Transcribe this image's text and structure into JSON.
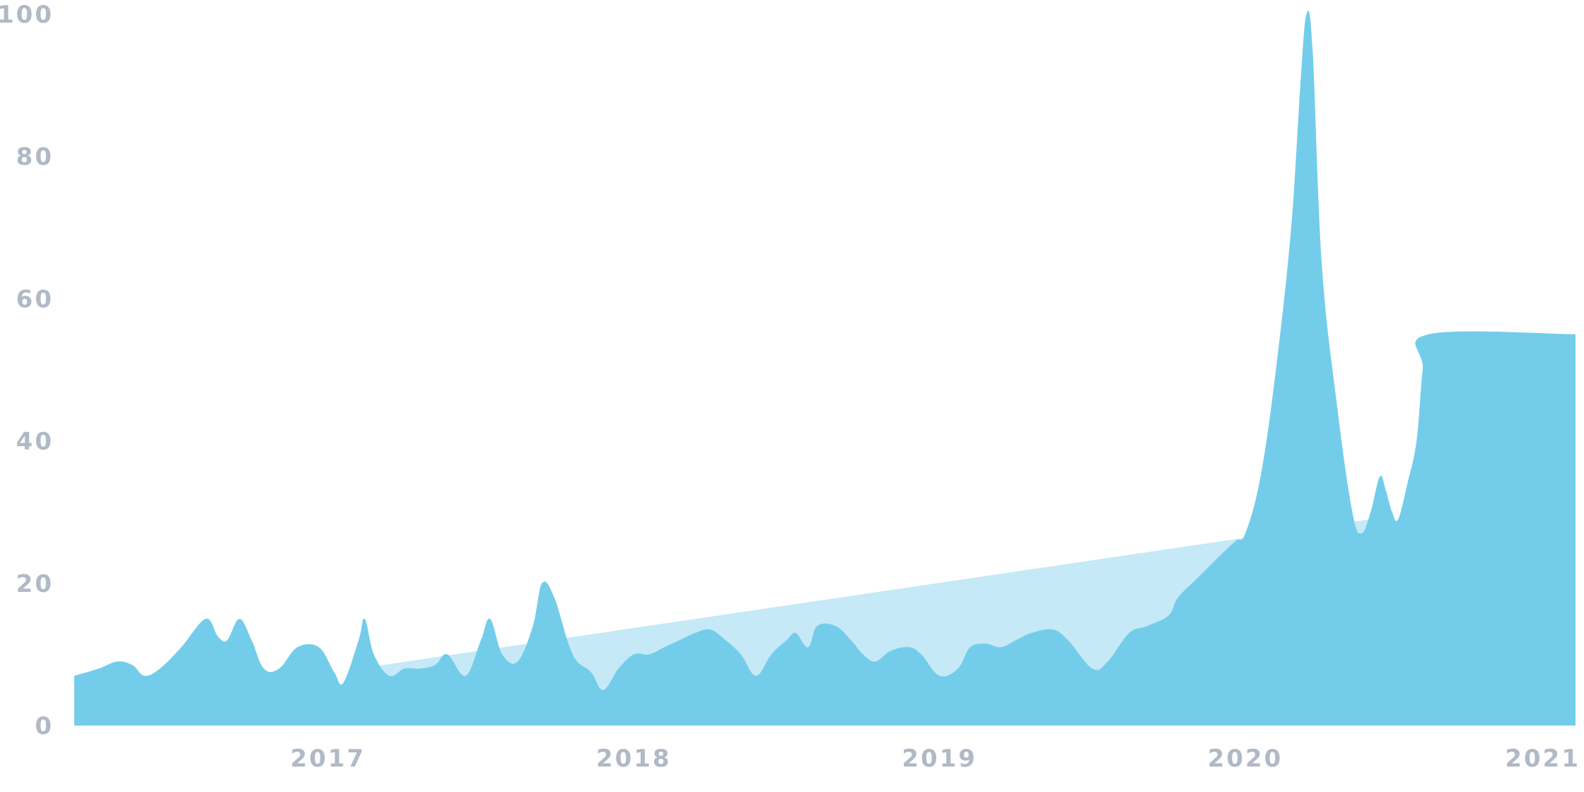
{
  "colors": {
    "area": "#73cdea",
    "trend": "#c5e9f6",
    "tick_text": "#b0b9c6",
    "background": "#ffffff"
  },
  "chart_data": {
    "type": "area",
    "title": "",
    "xlabel": "",
    "ylabel": "",
    "grid": false,
    "legend": "none",
    "ylim": [
      0,
      100
    ],
    "xlim": [
      2016.17,
      2021.08
    ],
    "y_ticks": [
      "0",
      "20",
      "40",
      "60",
      "80",
      "100"
    ],
    "x_ticks": [
      "2017",
      "2018",
      "2019",
      "2020",
      "2021"
    ],
    "series": [
      {
        "values": [
          [
            2016.17,
            7
          ],
          [
            2016.25,
            8
          ],
          [
            2016.31,
            9
          ],
          [
            2016.36,
            8.5
          ],
          [
            2016.4,
            7
          ],
          [
            2016.45,
            8
          ],
          [
            2016.52,
            11
          ],
          [
            2016.6,
            15
          ],
          [
            2016.64,
            12.5
          ],
          [
            2016.67,
            12
          ],
          [
            2016.71,
            15
          ],
          [
            2016.75,
            12
          ],
          [
            2016.79,
            8
          ],
          [
            2016.84,
            8
          ],
          [
            2016.9,
            11
          ],
          [
            2016.97,
            11
          ],
          [
            2017.02,
            7.5
          ],
          [
            2017.05,
            6
          ],
          [
            2017.1,
            12
          ],
          [
            2017.12,
            15
          ],
          [
            2017.15,
            10
          ],
          [
            2017.2,
            7
          ],
          [
            2017.25,
            8
          ],
          [
            2017.3,
            8
          ],
          [
            2017.35,
            8.5
          ],
          [
            2017.39,
            10
          ],
          [
            2017.45,
            7
          ],
          [
            2017.5,
            12
          ],
          [
            2017.53,
            15
          ],
          [
            2017.57,
            10
          ],
          [
            2017.62,
            9
          ],
          [
            2017.67,
            14
          ],
          [
            2017.7,
            20
          ],
          [
            2017.74,
            18
          ],
          [
            2017.8,
            10
          ],
          [
            2017.86,
            7.5
          ],
          [
            2017.9,
            5
          ],
          [
            2017.95,
            8
          ],
          [
            2018.0,
            10
          ],
          [
            2018.05,
            10
          ],
          [
            2018.1,
            11
          ],
          [
            2018.15,
            12
          ],
          [
            2018.2,
            13
          ],
          [
            2018.25,
            13.5
          ],
          [
            2018.3,
            12
          ],
          [
            2018.35,
            10
          ],
          [
            2018.4,
            7
          ],
          [
            2018.45,
            10
          ],
          [
            2018.5,
            12
          ],
          [
            2018.53,
            13
          ],
          [
            2018.57,
            11
          ],
          [
            2018.6,
            14
          ],
          [
            2018.66,
            14
          ],
          [
            2018.71,
            12
          ],
          [
            2018.75,
            10
          ],
          [
            2018.79,
            9
          ],
          [
            2018.84,
            10.5
          ],
          [
            2018.9,
            11
          ],
          [
            2018.94,
            10
          ],
          [
            2019.0,
            7
          ],
          [
            2019.06,
            8
          ],
          [
            2019.1,
            11
          ],
          [
            2019.15,
            11.5
          ],
          [
            2019.2,
            11
          ],
          [
            2019.25,
            12
          ],
          [
            2019.3,
            13
          ],
          [
            2019.37,
            13.5
          ],
          [
            2019.42,
            12
          ],
          [
            2019.5,
            8
          ],
          [
            2019.55,
            9
          ],
          [
            2019.62,
            13
          ],
          [
            2019.68,
            14
          ],
          [
            2019.75,
            15.5
          ],
          [
            2019.78,
            18
          ],
          [
            2019.85,
            21
          ],
          [
            2019.92,
            24
          ],
          [
            2019.97,
            26
          ],
          [
            2020.0,
            27
          ],
          [
            2020.05,
            35
          ],
          [
            2020.1,
            50
          ],
          [
            2020.15,
            70
          ],
          [
            2020.18,
            90
          ],
          [
            2020.2,
            100
          ],
          [
            2020.22,
            95
          ],
          [
            2020.25,
            65
          ],
          [
            2020.3,
            45
          ],
          [
            2020.35,
            30
          ],
          [
            2020.38,
            27
          ],
          [
            2020.41,
            30
          ],
          [
            2020.44,
            35
          ],
          [
            2020.46,
            33
          ],
          [
            2020.48,
            30
          ],
          [
            2020.5,
            29
          ],
          [
            2020.53,
            34
          ],
          [
            2020.56,
            40
          ],
          [
            2020.58,
            50
          ],
          [
            2020.6,
            55
          ],
          [
            2021.08,
            55
          ]
        ]
      }
    ],
    "trend_line": [
      [
        2017.1,
        8
      ],
      [
        2020.41,
        29
      ]
    ]
  }
}
